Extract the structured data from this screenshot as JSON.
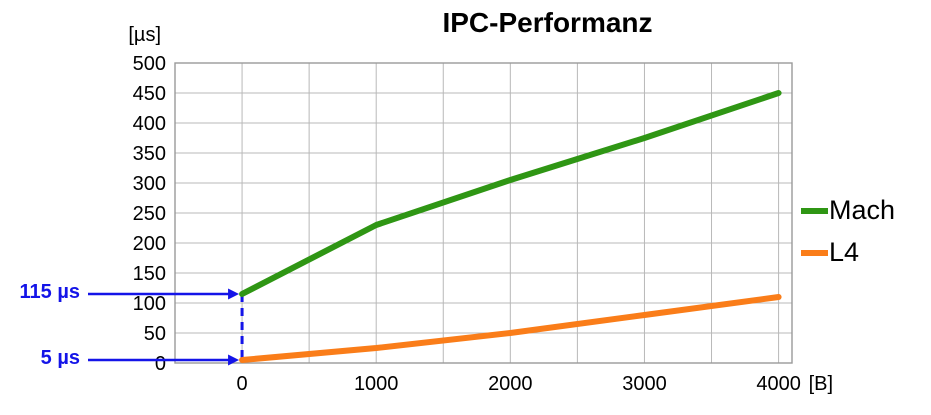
{
  "chart_data": {
    "type": "line",
    "title": "IPC-Performanz",
    "x_unit_label": "[B]",
    "y_unit_label": "[µs]",
    "x_ticks": [
      0,
      1000,
      2000,
      3000,
      4000
    ],
    "y_ticks": [
      500,
      450,
      400,
      350,
      300,
      250,
      200,
      150,
      100,
      50,
      0
    ],
    "xlim": [
      -500,
      4100
    ],
    "ylim": [
      0,
      500
    ],
    "x_grid_step": 500,
    "y_grid_step": 50,
    "grid": true,
    "legend_position": "right",
    "series": [
      {
        "name": "Mach",
        "color": "#2f9614",
        "x": [
          0,
          1000,
          2000,
          3000,
          4000
        ],
        "values": [
          115,
          230,
          305,
          375,
          450
        ]
      },
      {
        "name": "L4",
        "color": "#fa7d19",
        "x": [
          0,
          1000,
          2000,
          3000,
          4000
        ],
        "values": [
          5,
          25,
          50,
          80,
          110
        ]
      }
    ],
    "annotations": [
      {
        "label": "115 µs",
        "x": 0,
        "y": 115
      },
      {
        "label": "5 µs",
        "x": 0,
        "y": 5
      }
    ],
    "colors": {
      "annotation": "#1414e8",
      "grid": "#b8b8b8",
      "border": "#9a9a9a"
    }
  }
}
